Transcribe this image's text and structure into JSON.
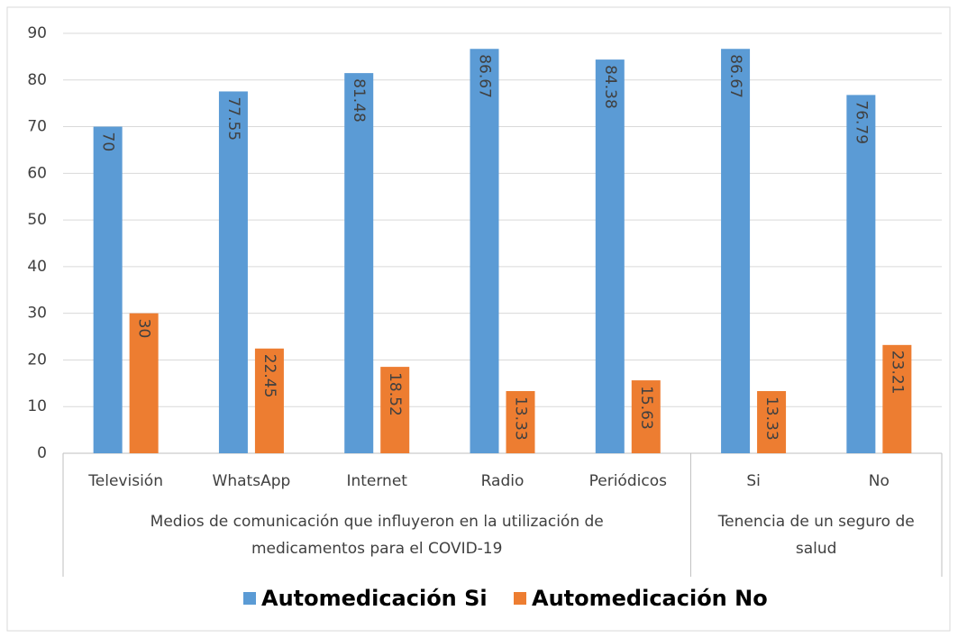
{
  "chart_data": {
    "type": "bar",
    "category_groups": [
      {
        "name": "Medios de comunicación que influyeron  en la utilización de\nmedicamentos para el COVID-19",
        "categories": [
          "Televisión",
          "WhatsApp",
          "Internet",
          "Radio",
          "Periódicos"
        ]
      },
      {
        "name": "Tenencia de un seguro de\nsalud",
        "categories": [
          "Si",
          "No"
        ]
      }
    ],
    "series": [
      {
        "name": "Automedicación Si",
        "color": "#5b9bd5",
        "values": [
          70,
          77.55,
          81.48,
          86.67,
          84.38,
          86.67,
          76.79
        ]
      },
      {
        "name": "Automedicación No",
        "color": "#ed7d31",
        "values": [
          30,
          22.45,
          18.52,
          13.33,
          15.63,
          13.33,
          23.21
        ]
      }
    ],
    "ylim": [
      0,
      90
    ],
    "yticks": [
      0,
      10,
      20,
      30,
      40,
      50,
      60,
      70,
      80,
      90
    ],
    "grid": true,
    "legend": "bottom"
  }
}
